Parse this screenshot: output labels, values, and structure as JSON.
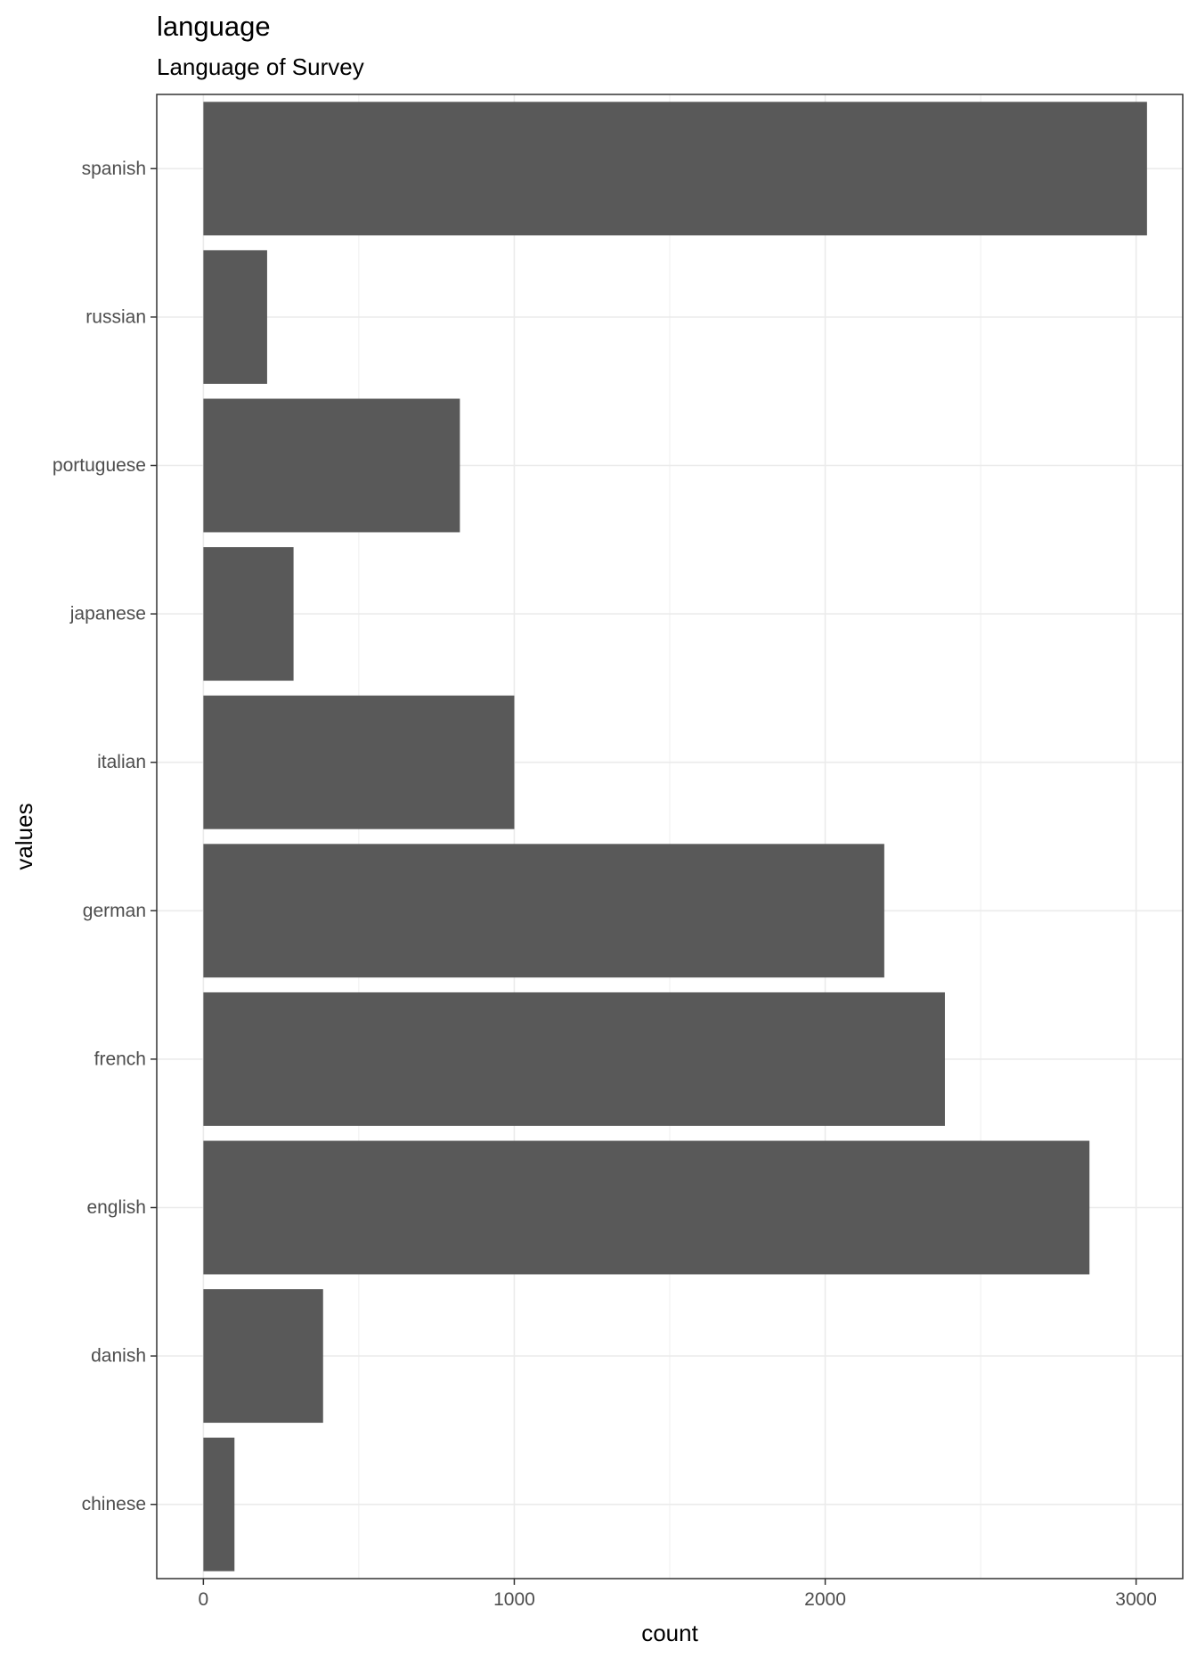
{
  "chart_data": {
    "type": "bar",
    "orientation": "horizontal",
    "title": "language",
    "subtitle": "Language of Survey",
    "xlabel": "count",
    "ylabel": "values",
    "categories": [
      "chinese",
      "danish",
      "english",
      "french",
      "german",
      "italian",
      "japanese",
      "portuguese",
      "russian",
      "spanish"
    ],
    "values": [
      100,
      385,
      2850,
      2385,
      2190,
      1000,
      290,
      825,
      205,
      3035
    ],
    "xlim": [
      -150,
      3150
    ],
    "x_ticks": [
      0,
      1000,
      2000,
      3000
    ],
    "grid": true,
    "bar_color": "#595959",
    "grid_color": "#ebebeb"
  }
}
